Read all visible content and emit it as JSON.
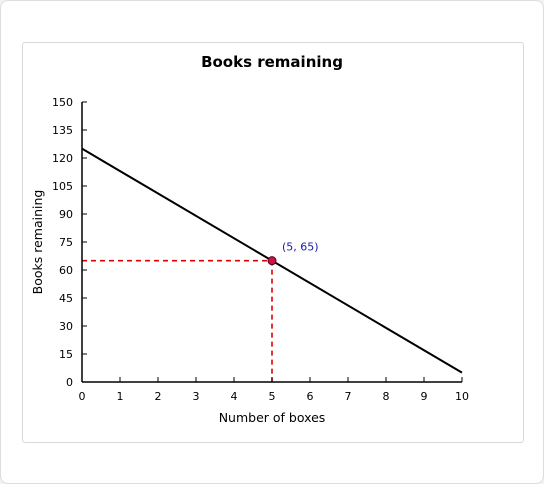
{
  "chart_data": {
    "type": "line",
    "title": "Books remaining",
    "xlabel": "Number of boxes",
    "ylabel": "Books remaining",
    "xlim": [
      0,
      10
    ],
    "ylim": [
      0,
      150
    ],
    "x_ticks": [
      0,
      1,
      2,
      3,
      4,
      5,
      6,
      7,
      8,
      9,
      10
    ],
    "y_ticks": [
      0,
      15,
      30,
      45,
      60,
      75,
      90,
      105,
      120,
      135,
      150
    ],
    "series": [
      {
        "x": [
          0,
          10
        ],
        "y": [
          125,
          5
        ],
        "color": "#000000"
      }
    ],
    "highlight_point": {
      "x": 5,
      "y": 65,
      "label": "(5, 65)",
      "color": "#cc1144",
      "guide_color": "#dd0000"
    },
    "grid": false,
    "legend": "none"
  }
}
